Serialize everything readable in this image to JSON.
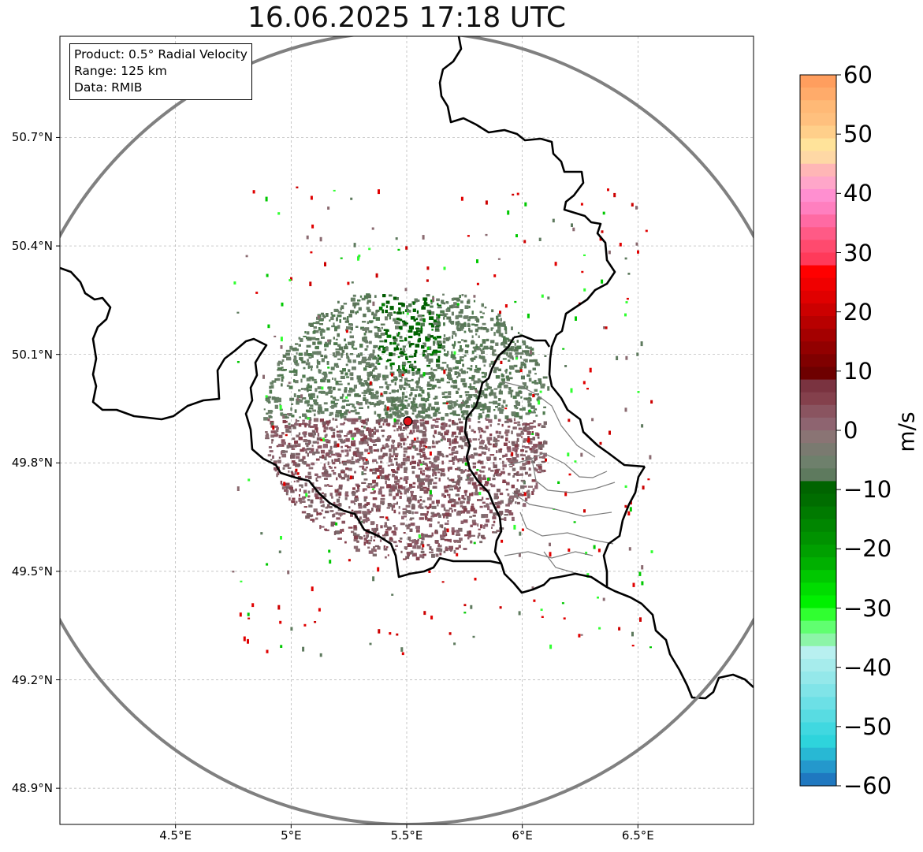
{
  "map": {
    "title": "16.06.2025 17:18 UTC",
    "info": {
      "product": "Product: 0.5° Radial Velocity",
      "range": "Range: 125 km",
      "source": "Data: RMIB"
    },
    "extent": {
      "lon": [
        4.0,
        7.0
      ],
      "lat": [
        48.8,
        50.98
      ]
    },
    "lat_ticks": [
      {
        "value": 50.7,
        "label": "50.7°N"
      },
      {
        "value": 50.4,
        "label": "50.4°N"
      },
      {
        "value": 50.1,
        "label": "50.1°N"
      },
      {
        "value": 49.8,
        "label": "49.8°N"
      },
      {
        "value": 49.5,
        "label": "49.5°N"
      },
      {
        "value": 49.2,
        "label": "49.2°N"
      },
      {
        "value": 48.9,
        "label": "48.9°N"
      }
    ],
    "lon_ticks": [
      {
        "value": 4.5,
        "label": "4.5°E"
      },
      {
        "value": 5.0,
        "label": "5°E"
      },
      {
        "value": 5.5,
        "label": "5.5°E"
      },
      {
        "value": 6.0,
        "label": "6°E"
      },
      {
        "value": 6.5,
        "label": "6.5°E"
      }
    ],
    "radar_site": {
      "lon": 5.505,
      "lat": 49.915,
      "marker_color": "#e0151b"
    },
    "range_ring_color": "#808080",
    "grid": true
  },
  "colorbar": {
    "unit": "m/s",
    "min": -60,
    "max": 60,
    "ticks": [
      {
        "value": 60,
        "label": "60"
      },
      {
        "value": 50,
        "label": "50"
      },
      {
        "value": 40,
        "label": "40"
      },
      {
        "value": 30,
        "label": "30"
      },
      {
        "value": 20,
        "label": "20"
      },
      {
        "value": 10,
        "label": "10"
      },
      {
        "value": 0,
        "label": "0"
      },
      {
        "value": -10,
        "label": "−10"
      },
      {
        "value": -20,
        "label": "−20"
      },
      {
        "value": -30,
        "label": "−30"
      },
      {
        "value": -40,
        "label": "−40"
      },
      {
        "value": -50,
        "label": "−50"
      },
      {
        "value": -60,
        "label": "−60"
      }
    ],
    "colors_top_to_bottom": [
      "#ff9e5e",
      "#ffab6a",
      "#ffb976",
      "#ffc07e",
      "#ffcf8a",
      "#ffe39a",
      "#fed8a5",
      "#ffb6b6",
      "#ffa6c9",
      "#ff8fd0",
      "#ff7fbf",
      "#ff6aa3",
      "#ff5a86",
      "#ff4a6e",
      "#ff3a5a",
      "#ff0000",
      "#f00000",
      "#e00000",
      "#cc0000",
      "#b80000",
      "#a40000",
      "#920000",
      "#800000",
      "#6e0000",
      "#7a3340",
      "#84404c",
      "#8a5460",
      "#8e6470",
      "#8a7474",
      "#7a7a70",
      "#6e806c",
      "#5e7a5e",
      "#006400",
      "#006d00",
      "#007a00",
      "#008600",
      "#009200",
      "#00a000",
      "#00b000",
      "#00c800",
      "#00dd00",
      "#00f000",
      "#30ff30",
      "#60ff70",
      "#8cf5a8",
      "#b8f0f0",
      "#a6ecec",
      "#94e8ea",
      "#80e4e8",
      "#6ce0e6",
      "#58dce2",
      "#40d8e0",
      "#2ed4dc",
      "#28b8d4",
      "#2498cc",
      "#1f78c0"
    ]
  }
}
